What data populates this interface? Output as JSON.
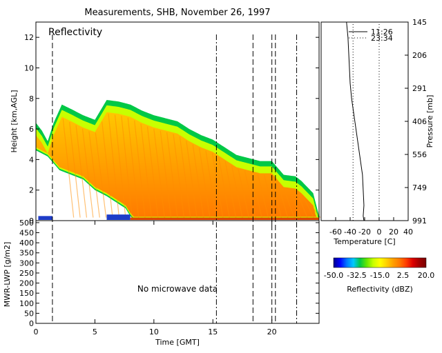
{
  "title": "Measurements, SHB, November 26, 1997",
  "chart_data": [
    {
      "id": "reflectivity",
      "type": "heatmap",
      "title": "Reflectivity",
      "ylabel": "Height [km,AGL]",
      "xlim": [
        0,
        24
      ],
      "ylim": [
        0,
        13
      ],
      "yticks": [
        0,
        2,
        4,
        6,
        8,
        10,
        12
      ],
      "cloud_top_km": [
        [
          0.0,
          6.4
        ],
        [
          0.5,
          5.9
        ],
        [
          1.0,
          5.2
        ],
        [
          1.5,
          6.4
        ],
        [
          2.2,
          7.6
        ],
        [
          3.0,
          7.3
        ],
        [
          4.0,
          6.9
        ],
        [
          5.0,
          6.6
        ],
        [
          6.0,
          7.9
        ],
        [
          7.0,
          7.8
        ],
        [
          8.0,
          7.6
        ],
        [
          9.0,
          7.2
        ],
        [
          10.0,
          6.9
        ],
        [
          11.0,
          6.7
        ],
        [
          12.0,
          6.5
        ],
        [
          13.0,
          6.0
        ],
        [
          14.0,
          5.6
        ],
        [
          15.0,
          5.3
        ],
        [
          16.0,
          4.8
        ],
        [
          17.0,
          4.3
        ],
        [
          18.0,
          4.1
        ],
        [
          19.0,
          3.9
        ],
        [
          20.0,
          3.9
        ],
        [
          21.0,
          3.0
        ],
        [
          22.0,
          2.9
        ],
        [
          22.5,
          2.6
        ],
        [
          23.5,
          1.8
        ],
        [
          24.0,
          0.3
        ]
      ],
      "cloud_base_km": [
        [
          0.0,
          4.6
        ],
        [
          1.0,
          4.2
        ],
        [
          2.0,
          3.3
        ],
        [
          3.0,
          3.0
        ],
        [
          4.0,
          2.7
        ],
        [
          5.0,
          2.0
        ],
        [
          6.0,
          1.6
        ],
        [
          7.0,
          1.1
        ],
        [
          7.6,
          0.8
        ],
        [
          8.0,
          0.3
        ],
        [
          8.3,
          0.05
        ],
        [
          24.0,
          0.05
        ]
      ],
      "surface_echo_km": [
        [
          0.2,
          1.4,
          0.3
        ],
        [
          6.0,
          8.0,
          0.4
        ],
        [
          8.0,
          24.0,
          0.2
        ]
      ]
    },
    {
      "id": "mwr-lwp",
      "type": "line",
      "ylabel": "MWR-LWP [g/m2]",
      "xlabel": "Time [GMT]",
      "xlim": [
        0,
        24
      ],
      "ylim": [
        0,
        510
      ],
      "xticks": [
        0,
        5,
        10,
        15,
        20
      ],
      "yticks": [
        0,
        50,
        100,
        150,
        200,
        250,
        300,
        350,
        400,
        450,
        500
      ],
      "annotation": "No microwave data",
      "dashed_times": [
        1.4,
        15.3,
        18.4,
        20.0,
        20.3,
        22.1
      ],
      "dash_styles": [
        "dash",
        "dash-dot",
        "dash",
        "dash",
        "dash",
        "dash-dot"
      ]
    },
    {
      "id": "sounding",
      "type": "line",
      "xlabel": "Temperature [C]",
      "ylabel": "Pressure [mb]",
      "xlim": [
        -80,
        40
      ],
      "xticks": [
        -60,
        -40,
        -20,
        0,
        20,
        40
      ],
      "pressure_ticks": [
        145,
        206,
        291,
        406,
        556,
        749,
        991
      ],
      "series": [
        {
          "name": "11:26",
          "style": "solid",
          "points": [
            [
              -45,
              13
            ],
            [
              -43,
              12
            ],
            [
              -42,
              11
            ],
            [
              -41,
              10
            ],
            [
              -40,
              9
            ],
            [
              -38,
              8
            ],
            [
              -35,
              7
            ],
            [
              -32,
              6
            ],
            [
              -29,
              5
            ],
            [
              -26,
              4
            ],
            [
              -23,
              3
            ],
            [
              -22,
              2
            ],
            [
              -21,
              1
            ],
            [
              -22,
              0.3
            ],
            [
              -21,
              0
            ]
          ]
        },
        {
          "name": "23:34",
          "style": "dotted",
          "points": [
            [
              -36,
              0
            ],
            [
              -36,
              13
            ]
          ]
        },
        {
          "name": "",
          "style": "dotted",
          "points": [
            [
              0,
              0
            ],
            [
              0,
              13
            ]
          ]
        }
      ]
    },
    {
      "id": "colorbar",
      "type": "heatmap",
      "xlabel": "Reflectivity (dBZ)",
      "range": [
        -50,
        20
      ],
      "tick_labels": [
        "-50.0",
        "-32.5",
        "-15.0",
        "2.5",
        "20.0"
      ],
      "colors": [
        "#00008b",
        "#0000ff",
        "#0078ff",
        "#00c8ff",
        "#00c846",
        "#64e600",
        "#c8ff00",
        "#ffff00",
        "#ffd200",
        "#ffa000",
        "#ff7800",
        "#ff3c00",
        "#dc0000",
        "#a00000",
        "#780000"
      ]
    }
  ]
}
